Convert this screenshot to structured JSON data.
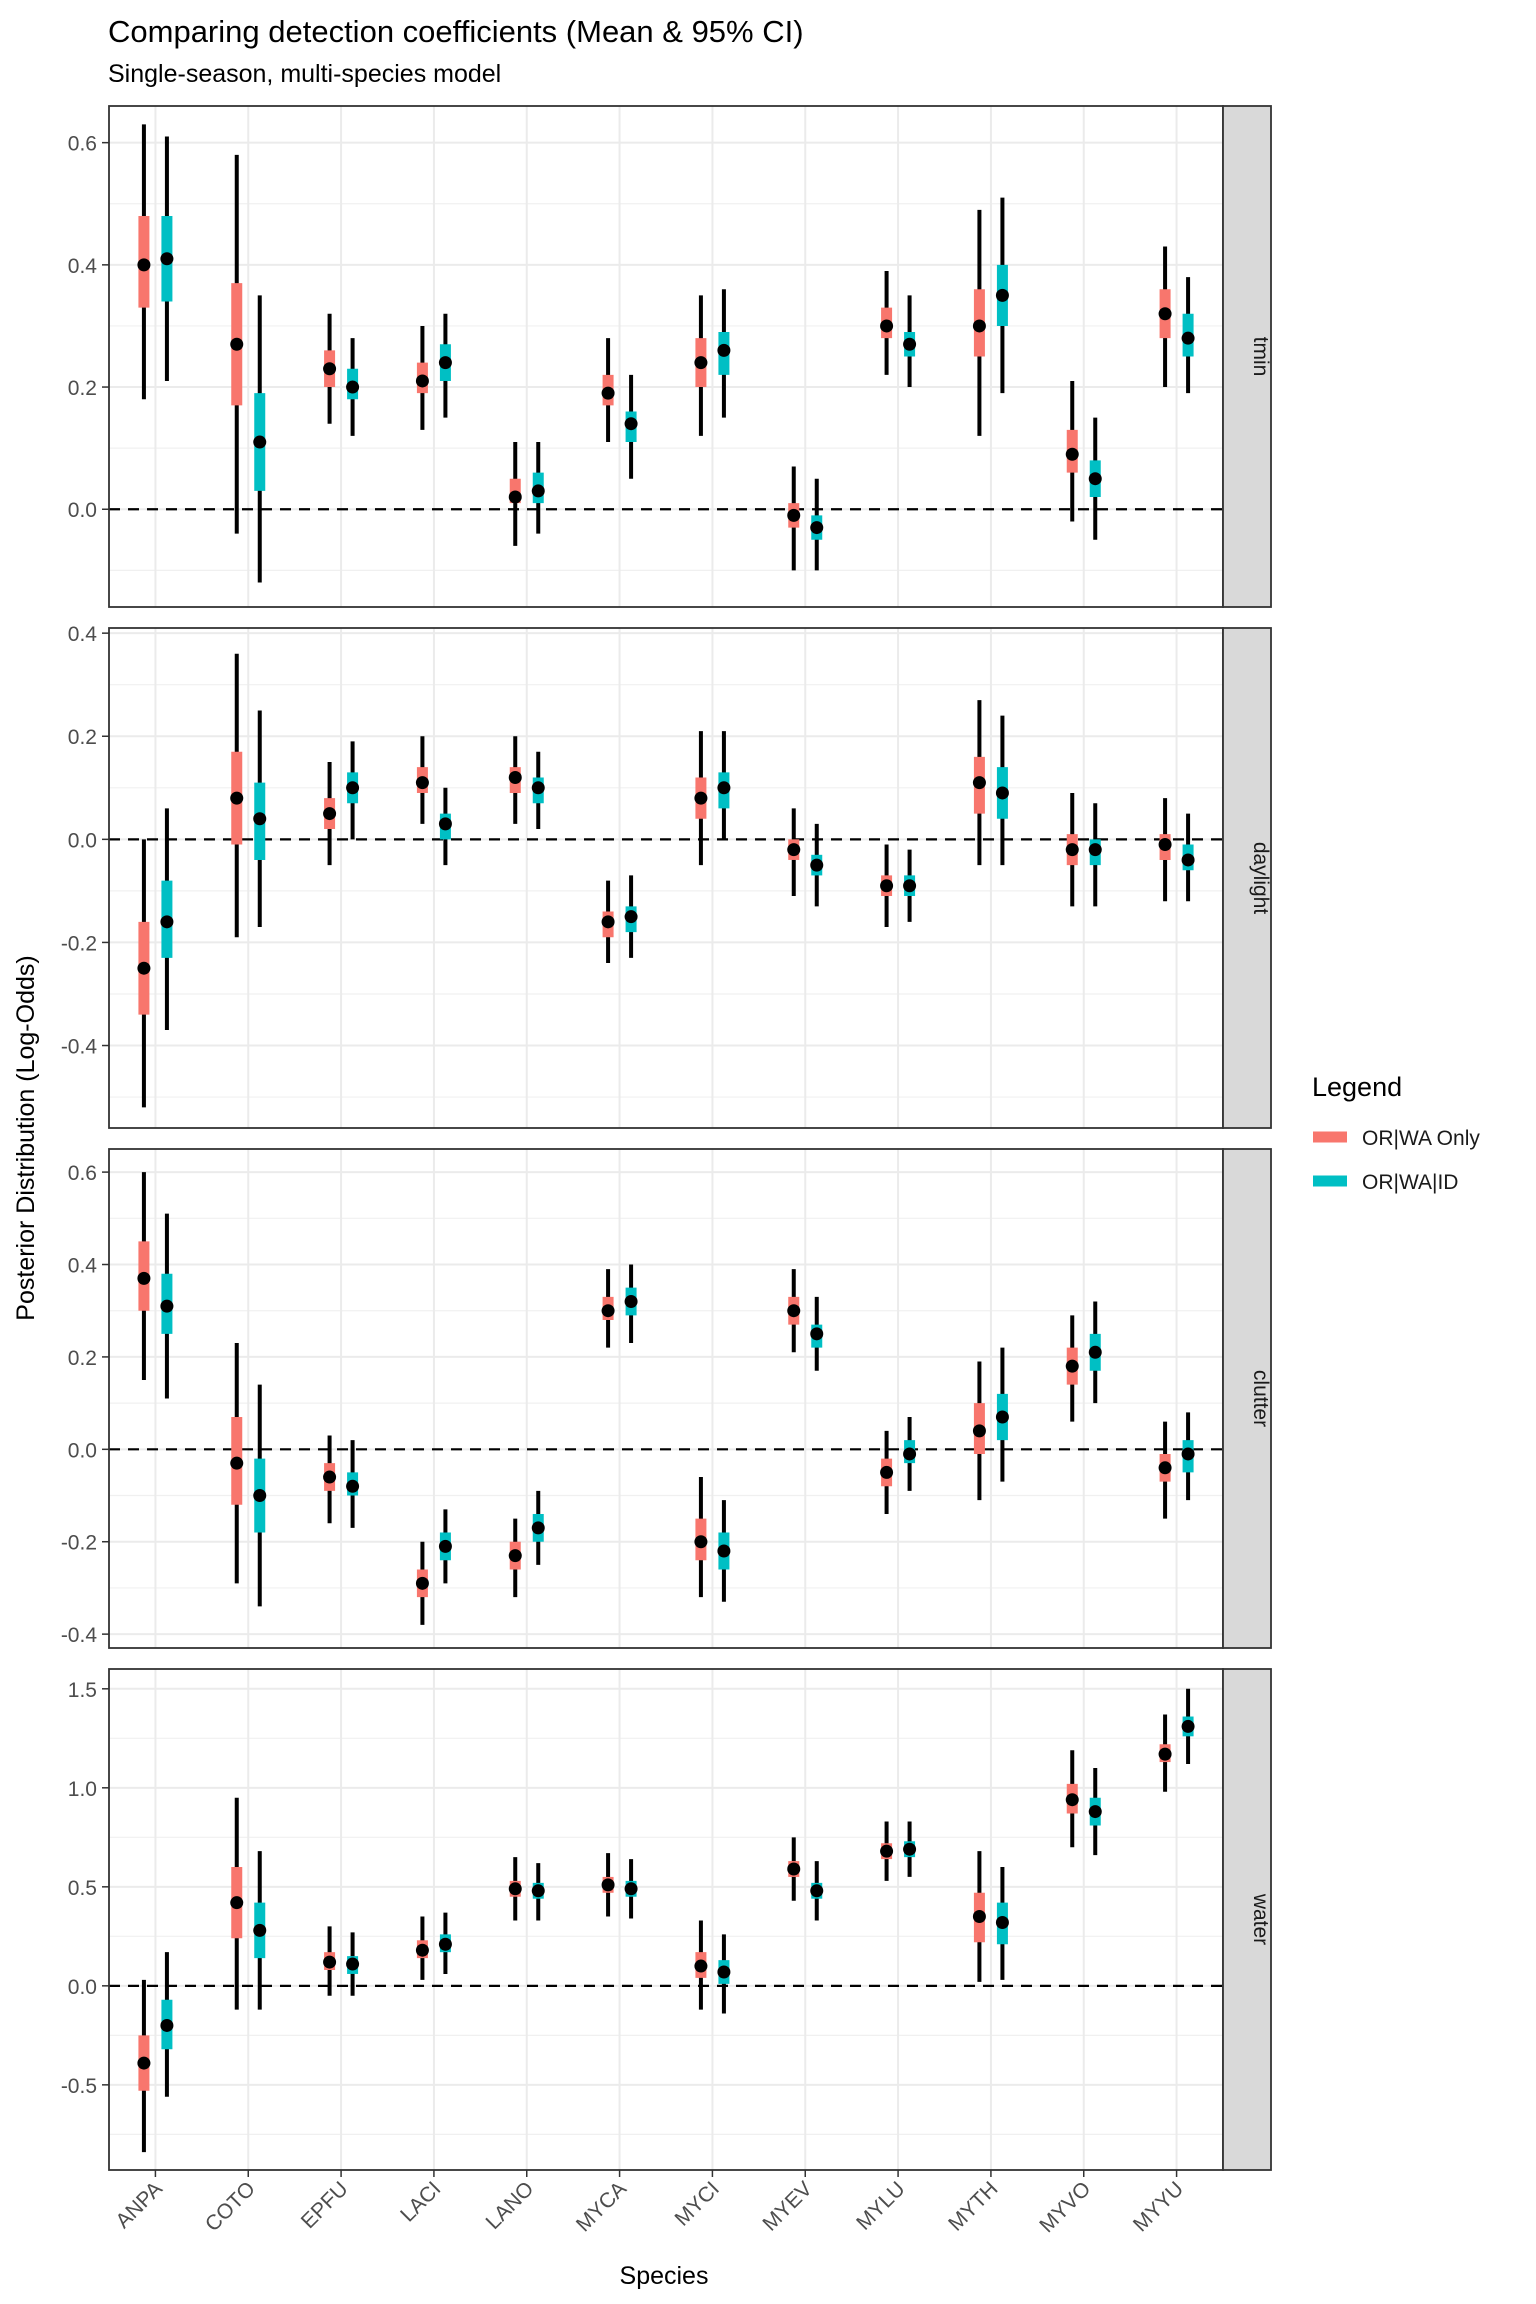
{
  "chart_data": {
    "type": "pointrange-facet",
    "title": "Comparing detection coefficients (Mean & 95% CI)",
    "subtitle": "Single-season, multi-species model",
    "xlabel": "Species",
    "ylabel": "Posterior Distribution (Log-Odds)",
    "categories": [
      "ANPA",
      "COTO",
      "EPFU",
      "LACI",
      "LANO",
      "MYCA",
      "MYCI",
      "MYEV",
      "MYLU",
      "MYTH",
      "MYVO",
      "MYYU"
    ],
    "reference_line": 0,
    "grid": true,
    "legend": {
      "title": "Legend",
      "position": "right",
      "entries": [
        {
          "name": "OR|WA Only",
          "color": "#F8766D"
        },
        {
          "name": "OR|WA|ID",
          "color": "#00BFC4"
        }
      ]
    },
    "facets": [
      {
        "label": "tmin",
        "ylim": [
          -0.16,
          0.66
        ],
        "ticks": [
          0.0,
          0.2,
          0.4,
          0.6
        ],
        "tick_labels": [
          "0.0",
          "0.2",
          "0.4",
          "0.6"
        ],
        "series": [
          {
            "name": "OR|WA Only",
            "mean": [
              0.4,
              0.27,
              0.23,
              0.21,
              0.02,
              0.19,
              0.24,
              -0.01,
              0.3,
              0.3,
              0.09,
              0.32
            ],
            "q25": [
              0.33,
              0.17,
              0.2,
              0.19,
              0.01,
              0.17,
              0.2,
              -0.03,
              0.28,
              0.25,
              0.06,
              0.28
            ],
            "q75": [
              0.48,
              0.37,
              0.26,
              0.24,
              0.05,
              0.22,
              0.28,
              0.01,
              0.33,
              0.36,
              0.13,
              0.36
            ],
            "lo": [
              0.18,
              -0.04,
              0.14,
              0.13,
              -0.06,
              0.11,
              0.12,
              -0.1,
              0.22,
              0.12,
              -0.02,
              0.2
            ],
            "hi": [
              0.63,
              0.58,
              0.32,
              0.3,
              0.11,
              0.28,
              0.35,
              0.07,
              0.39,
              0.49,
              0.21,
              0.43
            ]
          },
          {
            "name": "OR|WA|ID",
            "mean": [
              0.41,
              0.11,
              0.2,
              0.24,
              0.03,
              0.14,
              0.26,
              -0.03,
              0.27,
              0.35,
              0.05,
              0.28
            ],
            "q25": [
              0.34,
              0.03,
              0.18,
              0.21,
              0.01,
              0.11,
              0.22,
              -0.05,
              0.25,
              0.3,
              0.02,
              0.25
            ],
            "q75": [
              0.48,
              0.19,
              0.23,
              0.27,
              0.06,
              0.16,
              0.29,
              -0.01,
              0.29,
              0.4,
              0.08,
              0.32
            ],
            "lo": [
              0.21,
              -0.12,
              0.12,
              0.15,
              -0.04,
              0.05,
              0.15,
              -0.1,
              0.2,
              0.19,
              -0.05,
              0.19
            ],
            "hi": [
              0.61,
              0.35,
              0.28,
              0.32,
              0.11,
              0.22,
              0.36,
              0.05,
              0.35,
              0.51,
              0.15,
              0.38
            ]
          }
        ]
      },
      {
        "label": "daylight",
        "ylim": [
          -0.56,
          0.41
        ],
        "ticks": [
          -0.4,
          -0.2,
          0.0,
          0.2,
          0.4
        ],
        "tick_labels": [
          "-0.4",
          "-0.2",
          "0.0",
          "0.2",
          "0.4"
        ],
        "series": [
          {
            "name": "OR|WA Only",
            "mean": [
              -0.25,
              0.08,
              0.05,
              0.11,
              0.12,
              -0.16,
              0.08,
              -0.02,
              -0.09,
              0.11,
              -0.02,
              -0.01
            ],
            "q25": [
              -0.34,
              -0.01,
              0.02,
              0.09,
              0.09,
              -0.19,
              0.04,
              -0.04,
              -0.11,
              0.05,
              -0.05,
              -0.04
            ],
            "q75": [
              -0.16,
              0.17,
              0.08,
              0.14,
              0.14,
              -0.14,
              0.12,
              0.0,
              -0.07,
              0.16,
              0.01,
              0.01
            ],
            "lo": [
              -0.52,
              -0.19,
              -0.05,
              0.03,
              0.03,
              -0.24,
              -0.05,
              -0.11,
              -0.17,
              -0.05,
              -0.13,
              -0.12
            ],
            "hi": [
              0.0,
              0.36,
              0.15,
              0.2,
              0.2,
              -0.08,
              0.21,
              0.06,
              -0.01,
              0.27,
              0.09,
              0.08
            ]
          },
          {
            "name": "OR|WA|ID",
            "mean": [
              -0.16,
              0.04,
              0.1,
              0.03,
              0.1,
              -0.15,
              0.1,
              -0.05,
              -0.09,
              0.09,
              -0.02,
              -0.04
            ],
            "q25": [
              -0.23,
              -0.04,
              0.07,
              0.0,
              0.07,
              -0.18,
              0.06,
              -0.07,
              -0.11,
              0.04,
              -0.05,
              -0.06
            ],
            "q75": [
              -0.08,
              0.11,
              0.13,
              0.05,
              0.12,
              -0.13,
              0.13,
              -0.03,
              -0.07,
              0.14,
              0.0,
              -0.01
            ],
            "lo": [
              -0.37,
              -0.17,
              0.0,
              -0.05,
              0.02,
              -0.23,
              0.0,
              -0.13,
              -0.16,
              -0.05,
              -0.13,
              -0.12
            ],
            "hi": [
              0.06,
              0.25,
              0.19,
              0.1,
              0.17,
              -0.07,
              0.21,
              0.03,
              -0.02,
              0.24,
              0.07,
              0.05
            ]
          }
        ]
      },
      {
        "label": "clutter",
        "ylim": [
          -0.43,
          0.65
        ],
        "ticks": [
          -0.4,
          -0.2,
          0.0,
          0.2,
          0.4,
          0.6
        ],
        "tick_labels": [
          "-0.4",
          "-0.2",
          "0.0",
          "0.2",
          "0.4",
          "0.6"
        ],
        "series": [
          {
            "name": "OR|WA Only",
            "mean": [
              0.37,
              -0.03,
              -0.06,
              -0.29,
              -0.23,
              0.3,
              -0.2,
              0.3,
              -0.05,
              0.04,
              0.18,
              -0.04
            ],
            "q25": [
              0.3,
              -0.12,
              -0.09,
              -0.32,
              -0.26,
              0.28,
              -0.24,
              0.27,
              -0.08,
              -0.01,
              0.14,
              -0.07
            ],
            "q75": [
              0.45,
              0.07,
              -0.03,
              -0.26,
              -0.2,
              0.33,
              -0.15,
              0.33,
              -0.02,
              0.1,
              0.22,
              -0.01
            ],
            "lo": [
              0.15,
              -0.29,
              -0.16,
              -0.38,
              -0.32,
              0.22,
              -0.32,
              0.21,
              -0.14,
              -0.11,
              0.06,
              -0.15
            ],
            "hi": [
              0.6,
              0.23,
              0.03,
              -0.2,
              -0.15,
              0.39,
              -0.06,
              0.39,
              0.04,
              0.19,
              0.29,
              0.06
            ]
          },
          {
            "name": "OR|WA|ID",
            "mean": [
              0.31,
              -0.1,
              -0.08,
              -0.21,
              -0.17,
              0.32,
              -0.22,
              0.25,
              -0.01,
              0.07,
              0.21,
              -0.01
            ],
            "q25": [
              0.25,
              -0.18,
              -0.1,
              -0.24,
              -0.2,
              0.29,
              -0.26,
              0.22,
              -0.03,
              0.02,
              0.17,
              -0.05
            ],
            "q75": [
              0.38,
              -0.02,
              -0.05,
              -0.18,
              -0.14,
              0.35,
              -0.18,
              0.27,
              0.02,
              0.12,
              0.25,
              0.02
            ],
            "lo": [
              0.11,
              -0.34,
              -0.17,
              -0.29,
              -0.25,
              0.23,
              -0.33,
              0.17,
              -0.09,
              -0.07,
              0.1,
              -0.11
            ],
            "hi": [
              0.51,
              0.14,
              0.02,
              -0.13,
              -0.09,
              0.4,
              -0.11,
              0.33,
              0.07,
              0.22,
              0.32,
              0.08
            ]
          }
        ]
      },
      {
        "label": "water",
        "ylim": [
          -0.93,
          1.6
        ],
        "ticks": [
          -0.5,
          0.0,
          0.5,
          1.0,
          1.5
        ],
        "tick_labels": [
          "-0.5",
          "0.0",
          "0.5",
          "1.0",
          "1.5"
        ],
        "series": [
          {
            "name": "OR|WA Only",
            "mean": [
              -0.39,
              0.42,
              0.12,
              0.18,
              0.49,
              0.51,
              0.1,
              0.59,
              0.68,
              0.35,
              0.94,
              1.17
            ],
            "q25": [
              -0.53,
              0.24,
              0.08,
              0.14,
              0.45,
              0.47,
              0.04,
              0.55,
              0.64,
              0.22,
              0.87,
              1.13
            ],
            "q75": [
              -0.25,
              0.6,
              0.17,
              0.23,
              0.53,
              0.55,
              0.17,
              0.63,
              0.72,
              0.47,
              1.02,
              1.22
            ],
            "lo": [
              -0.84,
              -0.12,
              -0.05,
              0.03,
              0.33,
              0.35,
              -0.12,
              0.43,
              0.53,
              0.02,
              0.7,
              0.98
            ],
            "hi": [
              0.03,
              0.95,
              0.3,
              0.35,
              0.65,
              0.67,
              0.33,
              0.75,
              0.83,
              0.68,
              1.19,
              1.37
            ]
          },
          {
            "name": "OR|WA|ID",
            "mean": [
              -0.2,
              0.28,
              0.11,
              0.21,
              0.48,
              0.49,
              0.07,
              0.48,
              0.69,
              0.32,
              0.88,
              1.31
            ],
            "q25": [
              -0.32,
              0.14,
              0.06,
              0.17,
              0.44,
              0.45,
              0.01,
              0.44,
              0.65,
              0.21,
              0.81,
              1.26
            ],
            "q75": [
              -0.07,
              0.42,
              0.15,
              0.26,
              0.52,
              0.53,
              0.13,
              0.52,
              0.73,
              0.42,
              0.95,
              1.36
            ],
            "lo": [
              -0.56,
              -0.12,
              -0.05,
              0.06,
              0.33,
              0.34,
              -0.14,
              0.33,
              0.55,
              0.03,
              0.66,
              1.12
            ],
            "hi": [
              0.17,
              0.68,
              0.27,
              0.37,
              0.62,
              0.64,
              0.26,
              0.63,
              0.83,
              0.6,
              1.1,
              1.5
            ]
          }
        ]
      }
    ]
  }
}
